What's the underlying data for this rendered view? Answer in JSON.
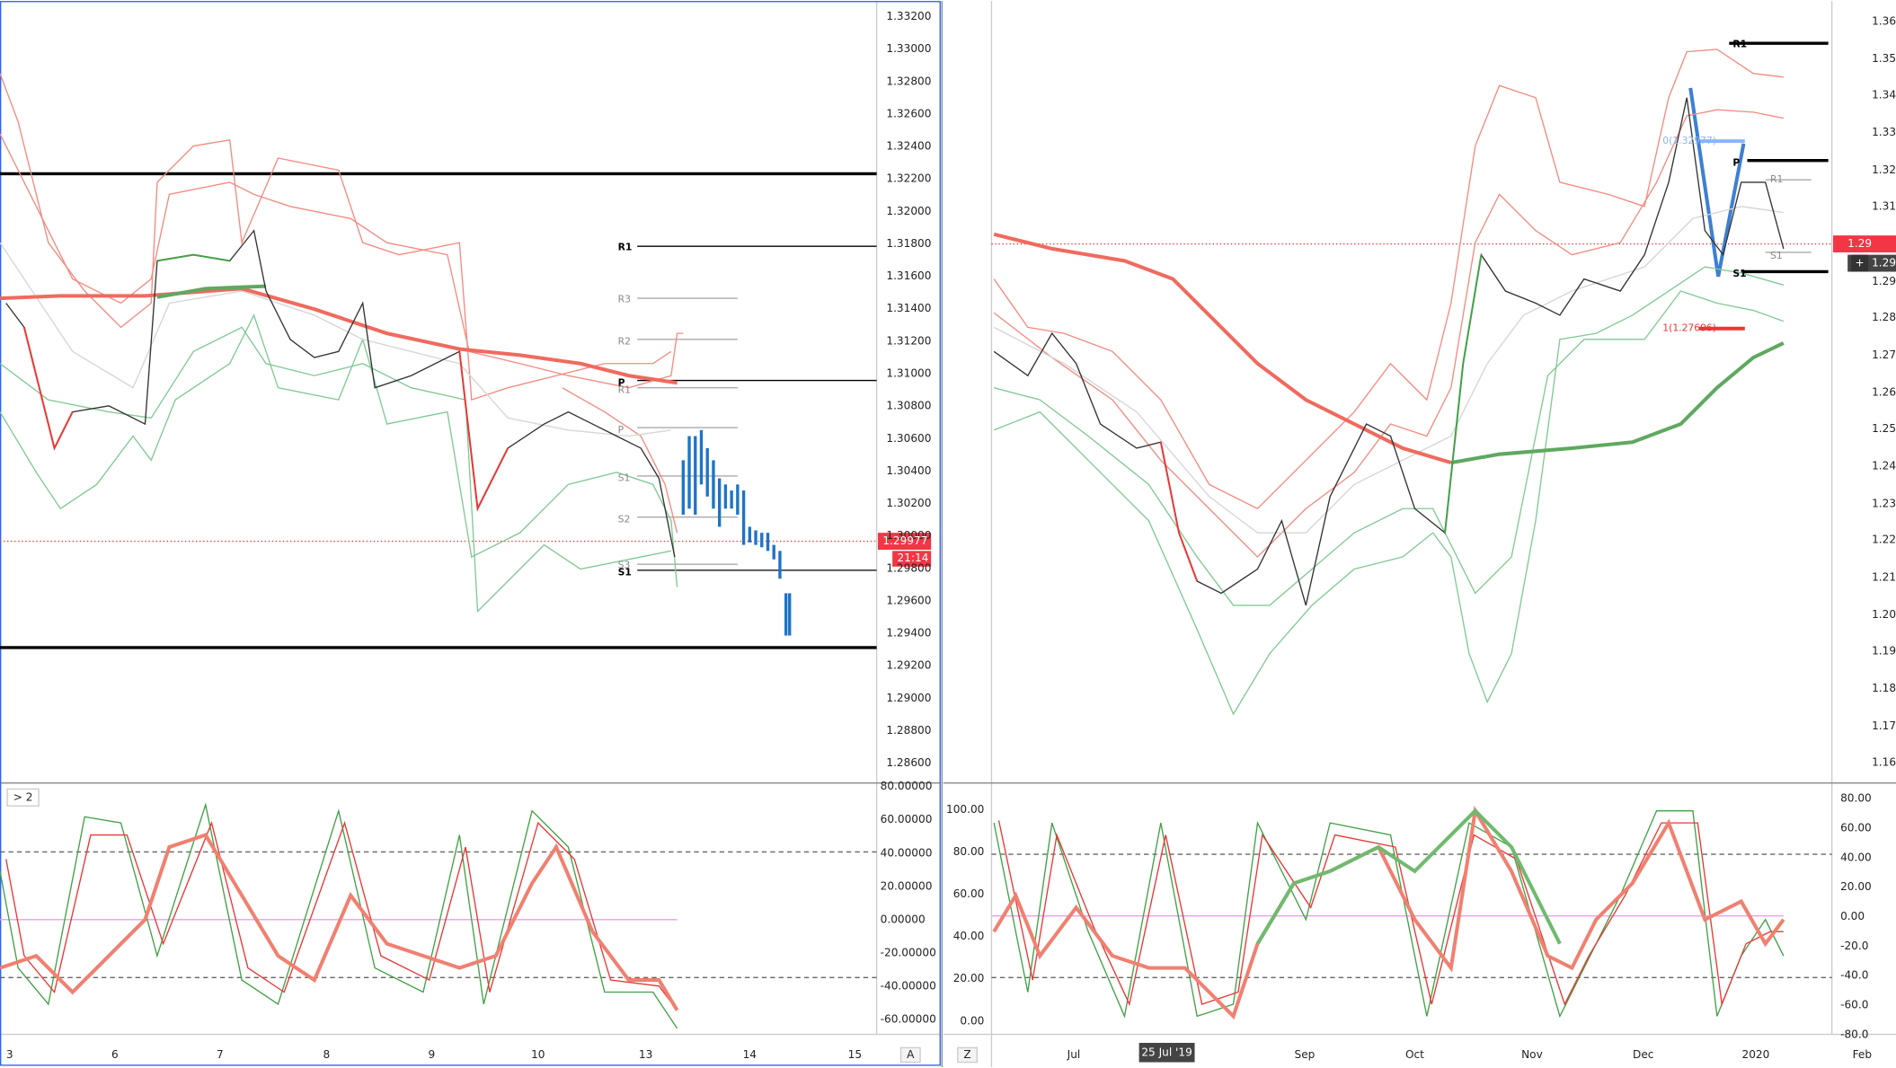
{
  "left_panel": {
    "price_axis": [
      "1.33200",
      "1.33000",
      "1.32800",
      "1.32600",
      "1.32400",
      "1.32200",
      "1.32000",
      "1.31800",
      "1.31600",
      "1.31400",
      "1.31200",
      "1.31000",
      "1.30800",
      "1.30600",
      "1.30400",
      "1.30200",
      "1.30000",
      "1.29800",
      "1.29600",
      "1.29400",
      "1.29200",
      "1.29000",
      "1.28800",
      "1.28600"
    ],
    "price_tag": "1.29977",
    "time_tag": "21:14",
    "indicator_toggle": "> 2",
    "oscillator_axis": [
      "80.00000",
      "60.00000",
      "40.00000",
      "20.00000",
      "0.00000",
      "-20.00000",
      "-40.00000",
      "-60.00000"
    ],
    "date_axis": [
      "3",
      "6",
      "7",
      "8",
      "9",
      "10",
      "13",
      "14",
      "15"
    ],
    "scale_button": "A",
    "levels": [
      "R1",
      "R3",
      "R2",
      "P",
      "R1",
      "P",
      "S1",
      "S2",
      "S3",
      "S1"
    ]
  },
  "right_panel": {
    "price_axis": [
      "1.36",
      "1.35",
      "1.34",
      "1.33",
      "1.32",
      "1.31",
      "1.29",
      "1.28",
      "1.27",
      "1.26",
      "1.25",
      "1.24",
      "1.23",
      "1.22",
      "1.21",
      "1.20",
      "1.19",
      "1.18",
      "1.17",
      "1.16"
    ],
    "price_tag": "1.29",
    "cursor_tag": "1.29",
    "cursor_button": "+",
    "oscillator_axis_left": [
      "100.00",
      "80.00",
      "60.00",
      "40.00",
      "20.00",
      "0.00"
    ],
    "oscillator_axis_right": [
      "80.00",
      "60.00",
      "40.00",
      "20.00",
      "0.00",
      "-20.0",
      "-40.0",
      "-60.0",
      "-80.0"
    ],
    "date_axis": [
      "Jul",
      "Sep",
      "Oct",
      "Nov",
      "Dec",
      "2020",
      "Feb"
    ],
    "date_cursor": "25 Jul '19",
    "scale_button": "Z",
    "levels": [
      "R1",
      "P",
      "R1",
      "S1",
      "S1"
    ],
    "fib_labels": [
      "0(1.32977)",
      "1(1.27696)"
    ]
  }
}
